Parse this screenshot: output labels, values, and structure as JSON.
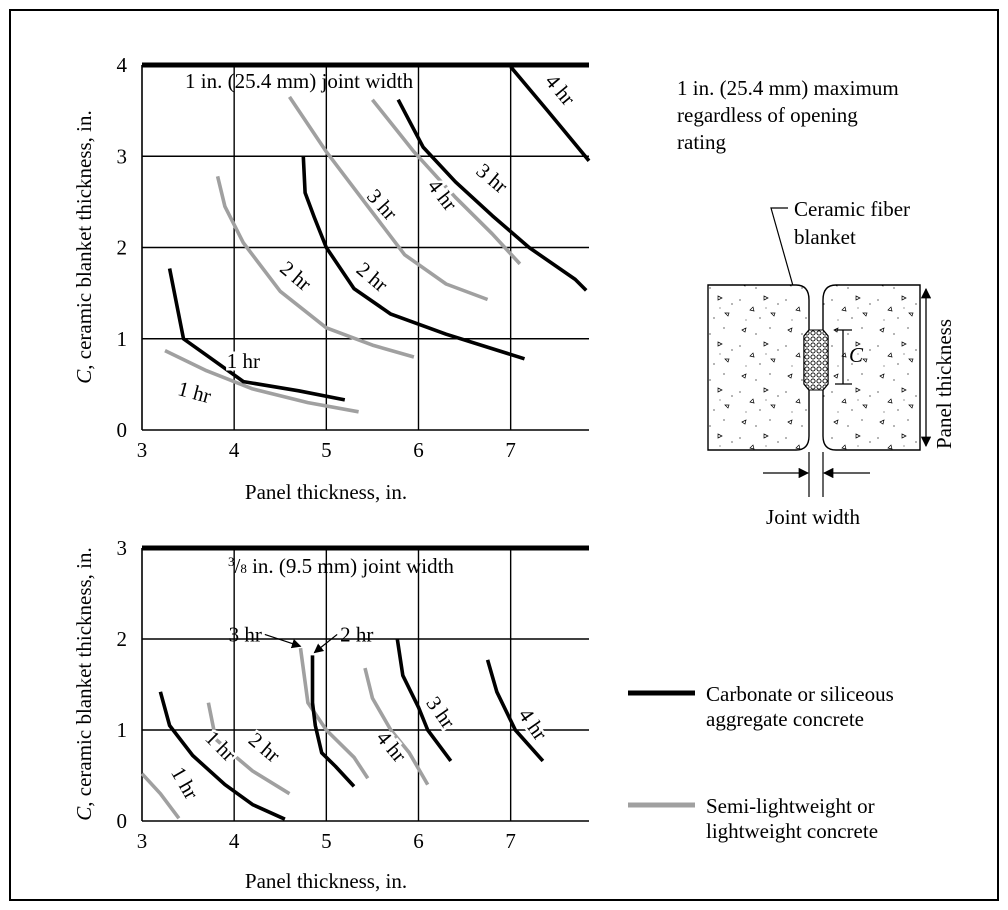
{
  "colors": {
    "carbonate": "#000000",
    "lightweight": "#a0a0a0",
    "grid": "#000000"
  },
  "chart_data": [
    {
      "type": "line",
      "xlabel": "Panel thickness, in.",
      "ylabel_italic": "C",
      "ylabel_rest": ", ceramic blanket thickness, in.",
      "annotation": "1 in. (25.4 mm) joint width",
      "xlim": [
        3,
        7.85
      ],
      "ylim": [
        0,
        4
      ],
      "xticks": [
        "3",
        "4",
        "5",
        "6",
        "7"
      ],
      "yticks": [
        "0",
        "1",
        "2",
        "3",
        "4"
      ],
      "grid": true,
      "series": [
        {
          "key": "carb-1hr",
          "material": "carbonate",
          "label": "1 hr",
          "points": [
            [
              3.3,
              1.77
            ],
            [
              3.45,
              1.0
            ],
            [
              3.7,
              0.82
            ],
            [
              4.1,
              0.53
            ],
            [
              4.7,
              0.43
            ],
            [
              5.2,
              0.33
            ]
          ]
        },
        {
          "key": "carb-2hr",
          "material": "carbonate",
          "label": "2 hr",
          "points": [
            [
              4.75,
              3.0
            ],
            [
              4.77,
              2.6
            ],
            [
              4.87,
              2.33
            ],
            [
              5.0,
              2.0
            ],
            [
              5.3,
              1.55
            ],
            [
              5.7,
              1.27
            ],
            [
              6.3,
              1.05
            ],
            [
              7.15,
              0.78
            ]
          ]
        },
        {
          "key": "carb-3hr",
          "material": "carbonate",
          "label": "3 hr",
          "points": [
            [
              5.78,
              3.62
            ],
            [
              6.05,
              3.1
            ],
            [
              6.4,
              2.72
            ],
            [
              6.8,
              2.35
            ],
            [
              7.2,
              2.0
            ],
            [
              7.7,
              1.65
            ],
            [
              7.82,
              1.53
            ]
          ]
        },
        {
          "key": "carb-4hr",
          "material": "carbonate",
          "label": "4 hr",
          "points": [
            [
              7.0,
              3.98
            ],
            [
              7.4,
              3.5
            ],
            [
              7.85,
              2.95
            ]
          ]
        },
        {
          "key": "lw-1hr",
          "material": "lightweight",
          "label": "1 hr",
          "points": [
            [
              3.25,
              0.87
            ],
            [
              3.7,
              0.65
            ],
            [
              4.2,
              0.45
            ],
            [
              4.8,
              0.3
            ],
            [
              5.35,
              0.2
            ]
          ]
        },
        {
          "key": "lw-2hr",
          "material": "lightweight",
          "label": "2 hr",
          "points": [
            [
              3.82,
              2.78
            ],
            [
              3.9,
              2.45
            ],
            [
              4.1,
              2.05
            ],
            [
              4.5,
              1.52
            ],
            [
              5.0,
              1.12
            ],
            [
              5.5,
              0.93
            ],
            [
              5.95,
              0.8
            ]
          ]
        },
        {
          "key": "lw-3hr",
          "material": "lightweight",
          "label": "3 hr",
          "points": [
            [
              4.6,
              3.65
            ],
            [
              5.0,
              3.05
            ],
            [
              5.45,
              2.45
            ],
            [
              5.85,
              1.92
            ],
            [
              6.3,
              1.6
            ],
            [
              6.75,
              1.43
            ]
          ]
        },
        {
          "key": "lw-4hr",
          "material": "lightweight",
          "label": "4 hr",
          "points": [
            [
              5.5,
              3.62
            ],
            [
              5.95,
              3.05
            ],
            [
              6.4,
              2.55
            ],
            [
              6.8,
              2.15
            ],
            [
              7.1,
              1.82
            ]
          ]
        }
      ],
      "curve_labels": [
        {
          "text": "1 hr",
          "x": 4.1,
          "y": 0.68,
          "rotate": 0
        },
        {
          "text": "1 hr",
          "x": 3.55,
          "y": 0.34,
          "rotate": 15
        },
        {
          "text": "2 hr",
          "x": 4.62,
          "y": 1.63,
          "rotate": 40
        },
        {
          "text": "2 hr",
          "x": 5.45,
          "y": 1.62,
          "rotate": 40
        },
        {
          "text": "3 hr",
          "x": 5.55,
          "y": 2.42,
          "rotate": 48
        },
        {
          "text": "3 hr",
          "x": 6.75,
          "y": 2.7,
          "rotate": 40
        },
        {
          "text": "4 hr",
          "x": 6.2,
          "y": 2.53,
          "rotate": 52
        },
        {
          "text": "4 hr",
          "x": 7.48,
          "y": 3.68,
          "rotate": 50
        }
      ]
    },
    {
      "type": "line",
      "xlabel": "Panel thickness, in.",
      "ylabel_italic": "C",
      "ylabel_rest": ", ceramic blanket thickness, in.",
      "annotation_sup": "3",
      "annotation_sub": "8",
      "annotation_rest": " in. (9.5 mm) joint width",
      "xlim": [
        3,
        7.85
      ],
      "ylim": [
        0,
        3
      ],
      "xticks": [
        "3",
        "4",
        "5",
        "6",
        "7"
      ],
      "yticks": [
        "0",
        "1",
        "2",
        "3"
      ],
      "grid": true,
      "series": [
        {
          "key": "carb-1hr",
          "material": "carbonate",
          "label": "1 hr",
          "points": [
            [
              3.2,
              1.42
            ],
            [
              3.3,
              1.05
            ],
            [
              3.55,
              0.72
            ],
            [
              3.9,
              0.4
            ],
            [
              4.2,
              0.18
            ],
            [
              4.55,
              0.02
            ]
          ]
        },
        {
          "key": "carb-2hr",
          "material": "carbonate",
          "label": "2 hr",
          "points": [
            [
              4.85,
              1.82
            ],
            [
              4.85,
              1.3
            ],
            [
              4.88,
              1.05
            ],
            [
              4.95,
              0.75
            ],
            [
              5.1,
              0.6
            ],
            [
              5.3,
              0.38
            ]
          ]
        },
        {
          "key": "carb-3hr",
          "material": "carbonate",
          "label": "3 hr",
          "points": [
            [
              5.77,
              2.0
            ],
            [
              5.83,
              1.6
            ],
            [
              6.0,
              1.25
            ],
            [
              6.1,
              1.0
            ],
            [
              6.35,
              0.66
            ]
          ]
        },
        {
          "key": "carb-4hr",
          "material": "carbonate",
          "label": "4 hr",
          "points": [
            [
              6.75,
              1.77
            ],
            [
              6.85,
              1.42
            ],
            [
              7.05,
              1.0
            ],
            [
              7.35,
              0.66
            ]
          ]
        },
        {
          "key": "lw-1hr",
          "material": "lightweight",
          "label": "1 hr",
          "points": [
            [
              3.0,
              0.52
            ],
            [
              3.2,
              0.3
            ],
            [
              3.4,
              0.03
            ]
          ]
        },
        {
          "key": "lw-2hr",
          "material": "lightweight",
          "label": "2 hr",
          "points": [
            [
              3.72,
              1.3
            ],
            [
              3.8,
              0.9
            ],
            [
              4.0,
              0.72
            ],
            [
              4.2,
              0.55
            ],
            [
              4.6,
              0.3
            ]
          ]
        },
        {
          "key": "lw-3hr",
          "material": "lightweight",
          "label": "3 hr",
          "points": [
            [
              4.72,
              1.9
            ],
            [
              4.8,
              1.3
            ],
            [
              5.0,
              1.0
            ],
            [
              5.3,
              0.7
            ],
            [
              5.45,
              0.47
            ]
          ]
        },
        {
          "key": "lw-4hr",
          "material": "lightweight",
          "label": "4 hr",
          "points": [
            [
              5.42,
              1.68
            ],
            [
              5.5,
              1.35
            ],
            [
              5.7,
              1.0
            ],
            [
              5.9,
              0.75
            ],
            [
              6.1,
              0.4
            ]
          ]
        }
      ],
      "curve_labels": [
        {
          "text": "1 hr",
          "x": 3.4,
          "y": 0.38,
          "rotate": 60
        },
        {
          "text": "1 hr",
          "x": 3.8,
          "y": 0.77,
          "rotate": 45
        },
        {
          "text": "2 hr",
          "x": 4.28,
          "y": 0.75,
          "rotate": 40
        },
        {
          "text": "3 hr",
          "x": 6.18,
          "y": 1.15,
          "rotate": 55
        },
        {
          "text": "4 hr",
          "x": 5.65,
          "y": 0.77,
          "rotate": 50
        },
        {
          "text": "4 hr",
          "x": 7.18,
          "y": 1.02,
          "rotate": 55
        }
      ],
      "callouts": [
        {
          "text": "3 hr",
          "anchor": "end",
          "text_x": 4.3,
          "text_y": 2.05,
          "arrow_to": [
            4.72,
            1.92
          ]
        },
        {
          "text": "2 hr",
          "anchor": "start",
          "text_x": 5.15,
          "text_y": 2.05,
          "arrow_to": [
            4.87,
            1.85
          ]
        }
      ]
    }
  ],
  "diagram": {
    "note_lines": [
      "1 in. (25.4 mm) maximum",
      "regardless of opening",
      "rating"
    ],
    "blanket_label_lines": [
      "Ceramic fiber",
      "blanket"
    ],
    "c_label": "C",
    "panel_thickness_label": "Panel thickness",
    "joint_width_label": "Joint width"
  },
  "legend": {
    "items": [
      {
        "material": "carbonate",
        "lines": [
          "Carbonate or siliceous",
          "aggregate concrete"
        ]
      },
      {
        "material": "lightweight",
        "lines": [
          "Semi-lightweight or",
          "lightweight concrete"
        ]
      }
    ]
  }
}
